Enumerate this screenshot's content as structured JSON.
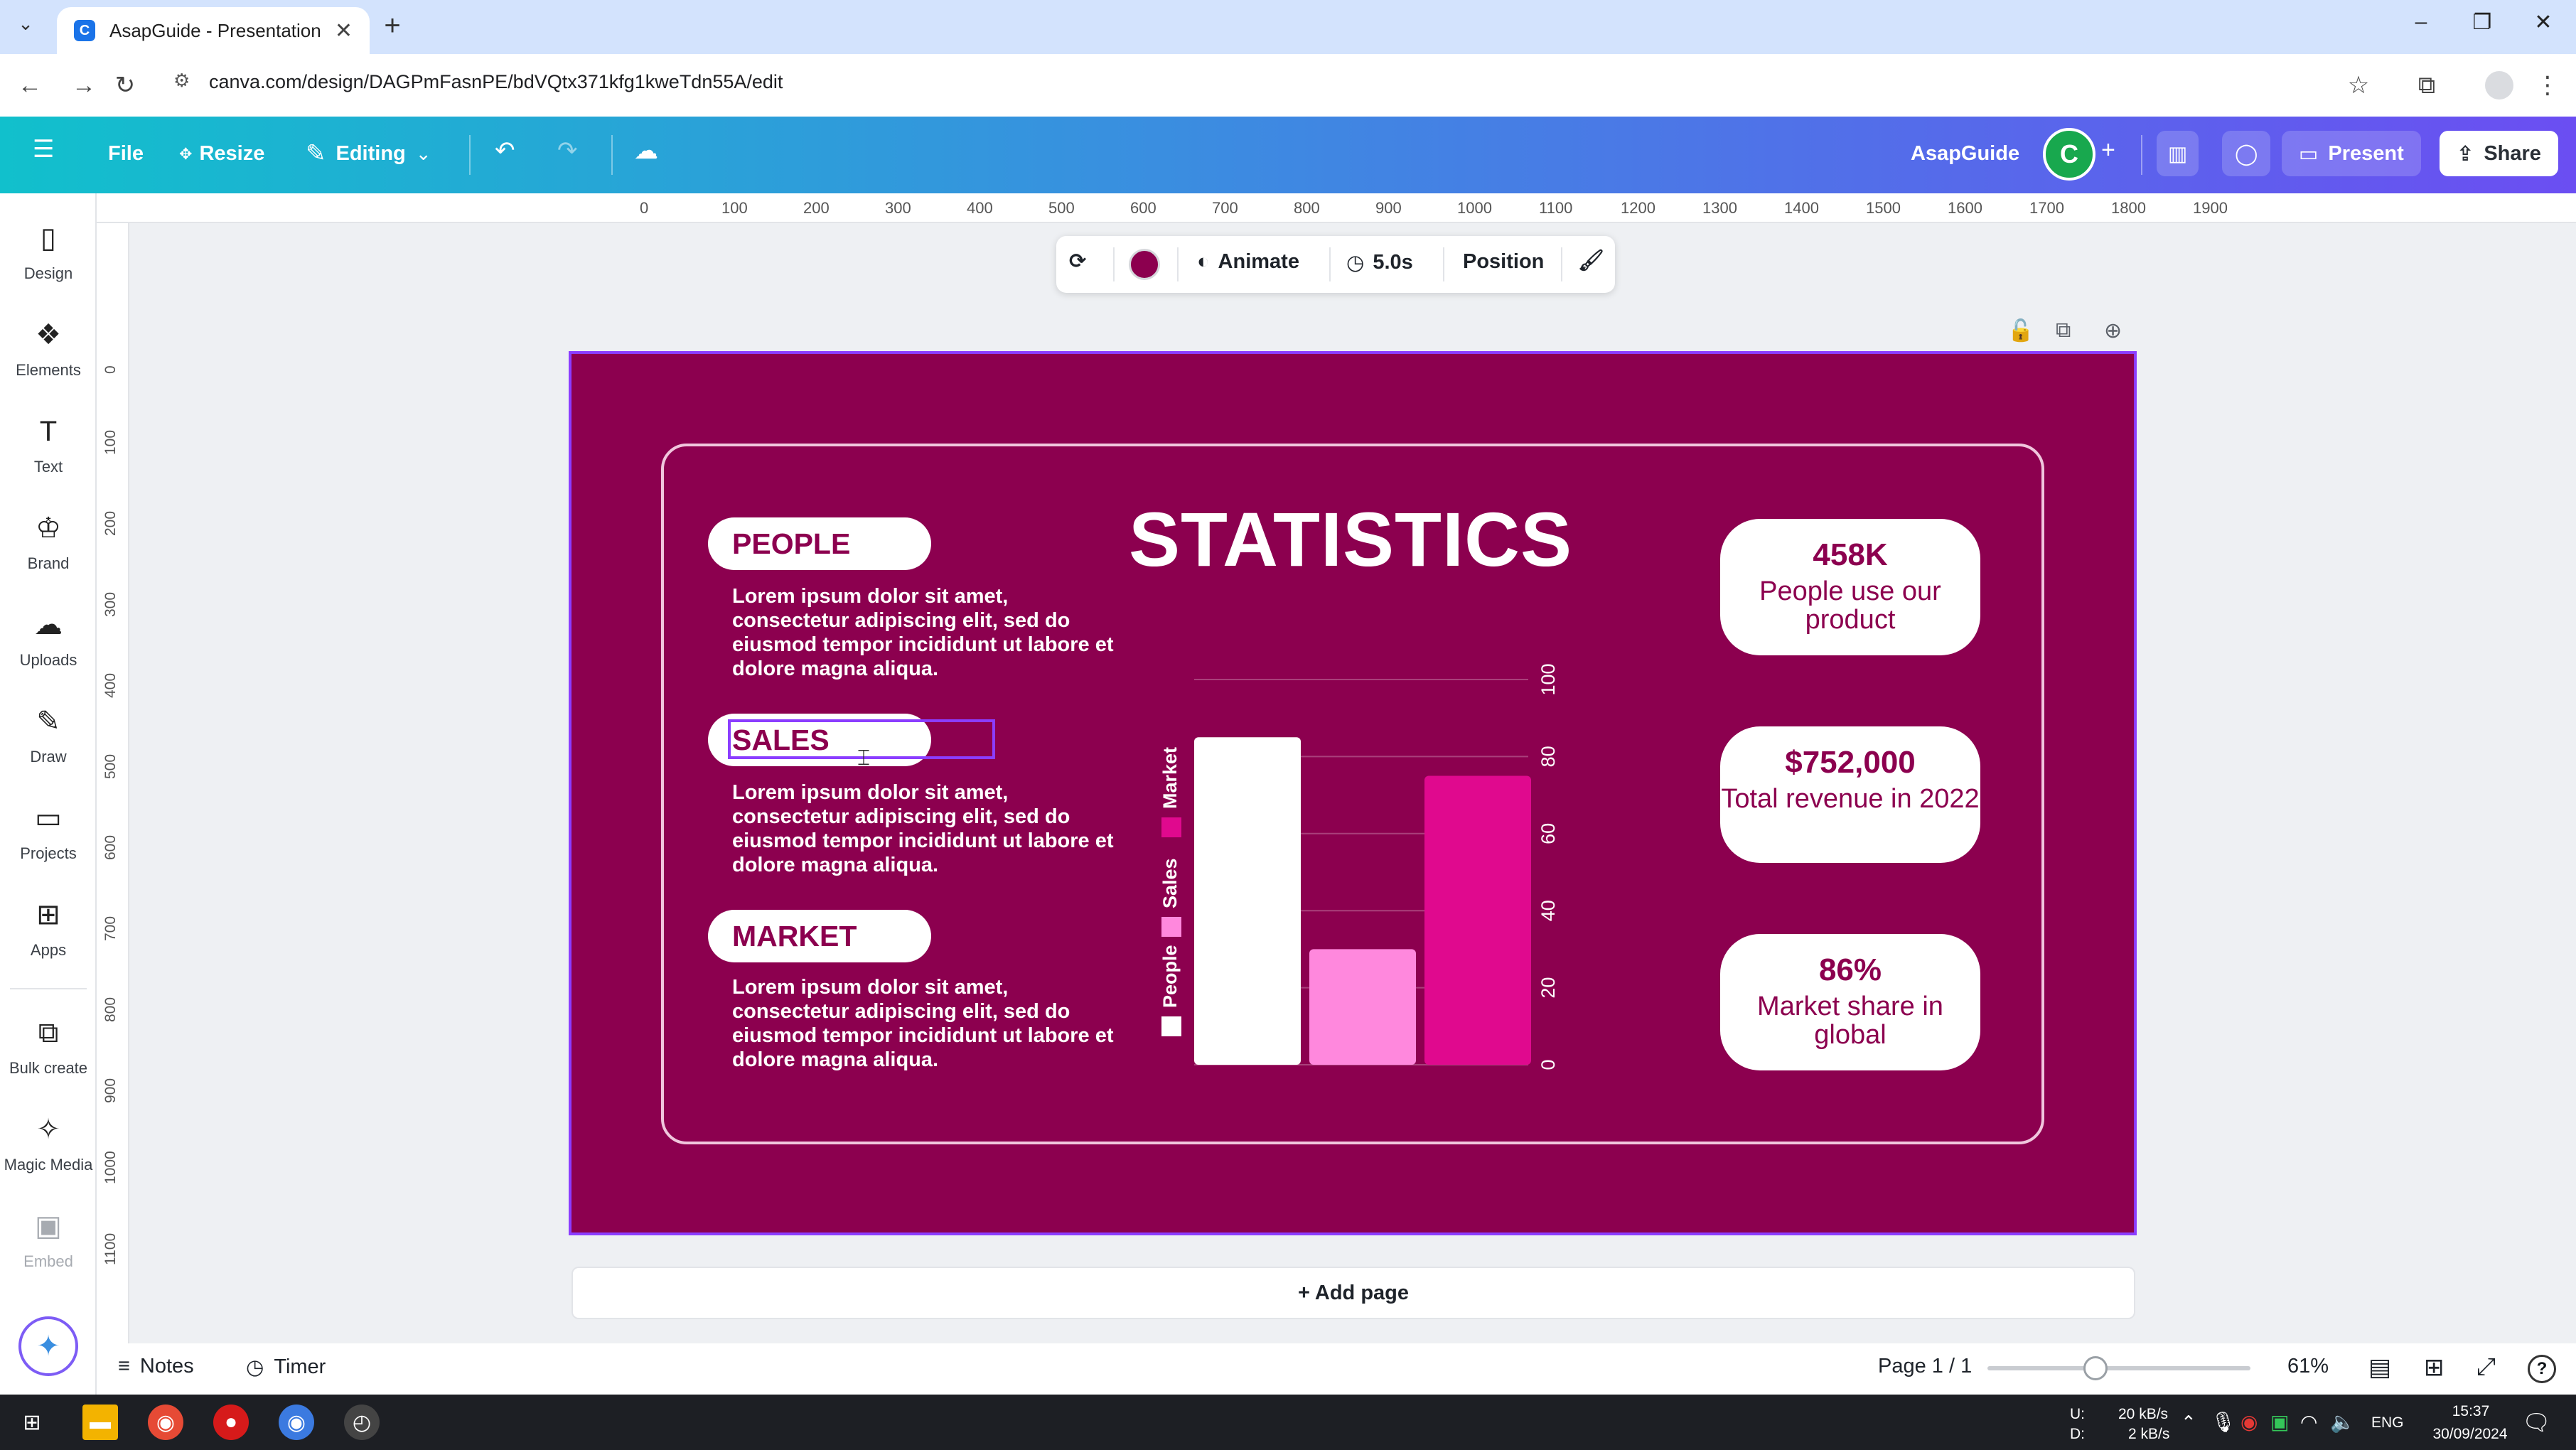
{
  "browser": {
    "tab_title": "AsapGuide - Presentation",
    "tab_close": "✕",
    "new_tab": "+",
    "url": "canva.com/design/DAGPmFasnPE/bdVQtx371kfg1kweTdn55A/edit"
  },
  "header": {
    "file_label": "File",
    "resize_label": "Resize",
    "editing_label": "Editing",
    "team_name": "AsapGuide",
    "avatar_letter": "C",
    "present_label": "Present",
    "share_label": "Share"
  },
  "sidebar": {
    "items": [
      {
        "label": "Design",
        "icon": "design-icon"
      },
      {
        "label": "Elements",
        "icon": "elements-icon"
      },
      {
        "label": "Text",
        "icon": "text-icon"
      },
      {
        "label": "Brand",
        "icon": "brand-icon"
      },
      {
        "label": "Uploads",
        "icon": "uploads-icon"
      },
      {
        "label": "Draw",
        "icon": "draw-icon"
      },
      {
        "label": "Projects",
        "icon": "projects-icon"
      },
      {
        "label": "Apps",
        "icon": "apps-icon"
      },
      {
        "label": "Bulk create",
        "icon": "bulk-create-icon"
      },
      {
        "label": "Magic Media",
        "icon": "magic-media-icon"
      },
      {
        "label": "Embed",
        "icon": "embed-icon"
      }
    ]
  },
  "ruler": {
    "top_ticks": [
      "0",
      "100",
      "200",
      "300",
      "400",
      "500",
      "600",
      "700",
      "800",
      "900",
      "1000",
      "1100",
      "1200",
      "1300",
      "1400",
      "1500",
      "1600",
      "1700",
      "1800",
      "1900"
    ],
    "left_ticks": [
      "0",
      "100",
      "200",
      "300",
      "400",
      "500",
      "600",
      "700",
      "800",
      "900",
      "1000",
      "1100"
    ]
  },
  "float_toolbar": {
    "animate_label": "Animate",
    "duration_label": "5.0s",
    "position_label": "Position",
    "fill_color": "#8c004f"
  },
  "slide": {
    "background_color": "#8c004f",
    "title": "STATISTICS",
    "sections": [
      {
        "heading": "PEOPLE",
        "text": "Lorem ipsum dolor sit amet, consectetur adipiscing elit, sed do eiusmod tempor incididunt ut labore et dolore magna aliqua."
      },
      {
        "heading": "SALES",
        "text": "Lorem ipsum dolor sit amet, consectetur adipiscing elit, sed do eiusmod tempor incididunt ut labore et dolore magna aliqua."
      },
      {
        "heading": "MARKET",
        "text": "Lorem ipsum dolor sit amet, consectetur adipiscing elit, sed do eiusmod tempor incididunt ut labore et dolore magna aliqua."
      }
    ],
    "stats": [
      {
        "value": "458K",
        "label": "People use our product"
      },
      {
        "value": "$752,000",
        "label": "Total revenue in 2022"
      },
      {
        "value": "86%",
        "label": "Market share in global"
      }
    ]
  },
  "chart_data": {
    "type": "bar",
    "categories": [
      "People",
      "Sales",
      "Market"
    ],
    "values": [
      85,
      30,
      75
    ],
    "colors": [
      "#ffffff",
      "#ff88dd",
      "#e0098e"
    ],
    "ylim": [
      0,
      100
    ],
    "ticks": [
      "0",
      "20",
      "40",
      "60",
      "80",
      "100"
    ],
    "legend": [
      "People",
      "Sales",
      "Market"
    ],
    "legend_placement": "left",
    "grid": true,
    "orientation": "rotated"
  },
  "canvas": {
    "add_page_label": "+ Add page"
  },
  "footer": {
    "notes_label": "Notes",
    "timer_label": "Timer",
    "page_indicator": "Page 1 / 1",
    "zoom_level": "61%",
    "zoom_fraction": 0.41
  },
  "taskbar": {
    "net_up": "20 kB/s",
    "net_down": "2 kB/s",
    "net_up_label": "U:",
    "net_down_label": "D:",
    "language": "ENG",
    "time": "15:37",
    "date": "30/09/2024"
  }
}
